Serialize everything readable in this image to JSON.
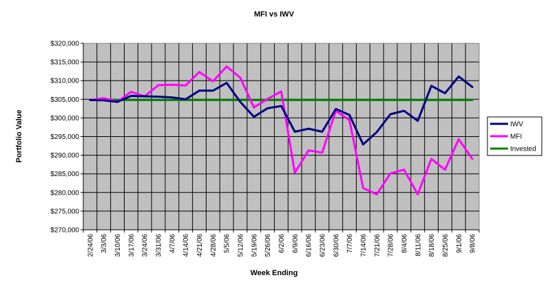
{
  "chart_data": {
    "type": "line",
    "title": "MFI vs IWV",
    "xlabel": "Week Ending",
    "ylabel": "Portfolio Value",
    "ylim": [
      270000,
      320000
    ],
    "ytick_step": 5000,
    "ytick_labels": [
      "$270,000",
      "$275,000",
      "$280,000",
      "$285,000",
      "$290,000",
      "$295,000",
      "$300,000",
      "$305,000",
      "$310,000",
      "$315,000",
      "$320,000"
    ],
    "grid": true,
    "legend_position": "right",
    "plot_background": "#c0c0c0",
    "categories": [
      "2/24/06",
      "3/3/06",
      "3/10/06",
      "3/17/06",
      "3/24/06",
      "3/31/06",
      "4/7/06",
      "4/14/06",
      "4/21/06",
      "4/28/06",
      "5/5/06",
      "5/12/06",
      "5/19/06",
      "5/26/06",
      "6/2/06",
      "6/9/06",
      "6/16/06",
      "6/23/06",
      "6/30/06",
      "7/7/06",
      "7/14/06",
      "7/21/06",
      "7/28/06",
      "8/4/06",
      "8/11/06",
      "8/18/06",
      "8/25/06",
      "9/1/06",
      "9/8/06"
    ],
    "series": [
      {
        "name": "IWV",
        "color": "#000080",
        "values": [
          304800,
          304700,
          304300,
          305900,
          305800,
          305700,
          305500,
          305000,
          307300,
          307300,
          309400,
          304300,
          300300,
          302600,
          303200,
          296300,
          297100,
          296300,
          302400,
          300800,
          292900,
          296200,
          301000,
          301900,
          299200,
          308600,
          306600,
          311100,
          308300
        ]
      },
      {
        "name": "MFI",
        "color": "#ff00ff",
        "values": [
          304800,
          305300,
          304300,
          307000,
          305800,
          308800,
          308900,
          308700,
          312300,
          309800,
          313800,
          310800,
          302800,
          305100,
          307100,
          285300,
          291300,
          290700,
          301900,
          299400,
          281200,
          279500,
          285100,
          286100,
          279500,
          289000,
          286100,
          294300,
          289000
        ]
      },
      {
        "name": "Invested",
        "color": "#008000",
        "values": [
          304800,
          304800,
          304800,
          304800,
          304800,
          304800,
          304800,
          304800,
          304800,
          304800,
          304800,
          304800,
          304800,
          304800,
          304800,
          304800,
          304800,
          304800,
          304800,
          304800,
          304800,
          304800,
          304800,
          304800,
          304800,
          304800,
          304800,
          304800,
          304800
        ]
      }
    ]
  }
}
